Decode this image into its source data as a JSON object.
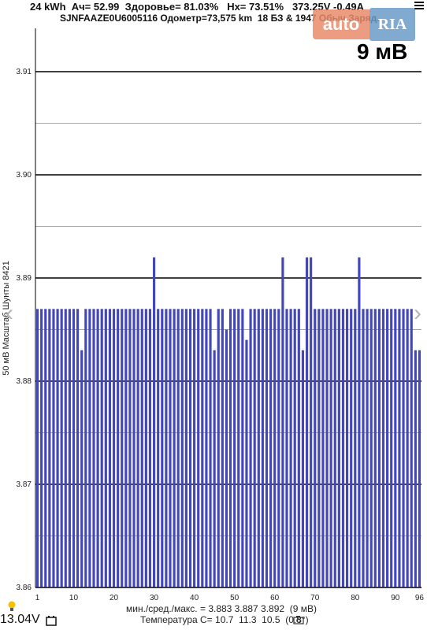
{
  "header": {
    "line1": "24 kWh  Ач= 52.99  Здоровье= 81.03%   Нх= 73.51%   373.25V -0.49A",
    "line2": "SJNFAAZE0U6005116 Одометр=73,575 km  18 БЗ & 1947 Обыч.Заряд."
  },
  "watermark": {
    "auto": "auto",
    "ria": "RIA"
  },
  "scale_label": "9 мВ",
  "footer": {
    "stats": "мин./сред./макс. = 3.883 3.887 3.892  (9 мВ)",
    "temperature": "Температура С= 10.7  11.3  10.5  (0.8°)",
    "voltage": "13.04V"
  },
  "icons": {
    "menu": "menu-icon",
    "bulb": "lightbulb-icon",
    "battery": "battery-icon",
    "camera": "camera-icon",
    "left": "chevron-left-icon",
    "right": "chevron-right-icon"
  },
  "colors": {
    "bar": "#4447b8",
    "major_grid": "#000000",
    "minor_grid": "#8c8c8c",
    "bulb": "#f2c200"
  },
  "chart_data": {
    "type": "bar",
    "ylabel": "50 мВ Масштаб  Шунты 8421",
    "ylim": [
      3.86,
      3.915
    ],
    "y_ticks": [
      "3.86",
      "3.87",
      "3.88",
      "3.89",
      "3.90",
      "3.91"
    ],
    "x_tick_labels": [
      "1",
      "10",
      "20",
      "30",
      "40",
      "50",
      "60",
      "70",
      "80",
      "90",
      "96"
    ],
    "x_ticks": [
      1,
      10,
      20,
      30,
      40,
      50,
      60,
      70,
      80,
      90,
      96
    ],
    "categories": [
      1,
      2,
      3,
      4,
      5,
      6,
      7,
      8,
      9,
      10,
      11,
      12,
      13,
      14,
      15,
      16,
      17,
      18,
      19,
      20,
      21,
      22,
      23,
      24,
      25,
      26,
      27,
      28,
      29,
      30,
      31,
      32,
      33,
      34,
      35,
      36,
      37,
      38,
      39,
      40,
      41,
      42,
      43,
      44,
      45,
      46,
      47,
      48,
      49,
      50,
      51,
      52,
      53,
      54,
      55,
      56,
      57,
      58,
      59,
      60,
      61,
      62,
      63,
      64,
      65,
      66,
      67,
      68,
      69,
      70,
      71,
      72,
      73,
      74,
      75,
      76,
      77,
      78,
      79,
      80,
      81,
      82,
      83,
      84,
      85,
      86,
      87,
      88,
      89,
      90,
      91,
      92,
      93,
      94,
      95,
      96
    ],
    "values": [
      3.887,
      3.887,
      3.887,
      3.887,
      3.887,
      3.887,
      3.887,
      3.887,
      3.887,
      3.887,
      3.887,
      3.883,
      3.887,
      3.887,
      3.887,
      3.887,
      3.887,
      3.887,
      3.887,
      3.887,
      3.887,
      3.887,
      3.887,
      3.887,
      3.887,
      3.887,
      3.887,
      3.887,
      3.887,
      3.892,
      3.887,
      3.887,
      3.887,
      3.887,
      3.887,
      3.887,
      3.887,
      3.887,
      3.887,
      3.887,
      3.887,
      3.887,
      3.887,
      3.887,
      3.883,
      3.887,
      3.887,
      3.885,
      3.887,
      3.887,
      3.887,
      3.887,
      3.884,
      3.887,
      3.887,
      3.887,
      3.887,
      3.887,
      3.887,
      3.887,
      3.887,
      3.892,
      3.887,
      3.887,
      3.887,
      3.887,
      3.883,
      3.892,
      3.892,
      3.887,
      3.887,
      3.887,
      3.887,
      3.887,
      3.887,
      3.887,
      3.887,
      3.887,
      3.887,
      3.887,
      3.892,
      3.887,
      3.887,
      3.887,
      3.887,
      3.887,
      3.887,
      3.887,
      3.887,
      3.887,
      3.887,
      3.887,
      3.887,
      3.887,
      3.883,
      3.883
    ],
    "grid": true
  }
}
